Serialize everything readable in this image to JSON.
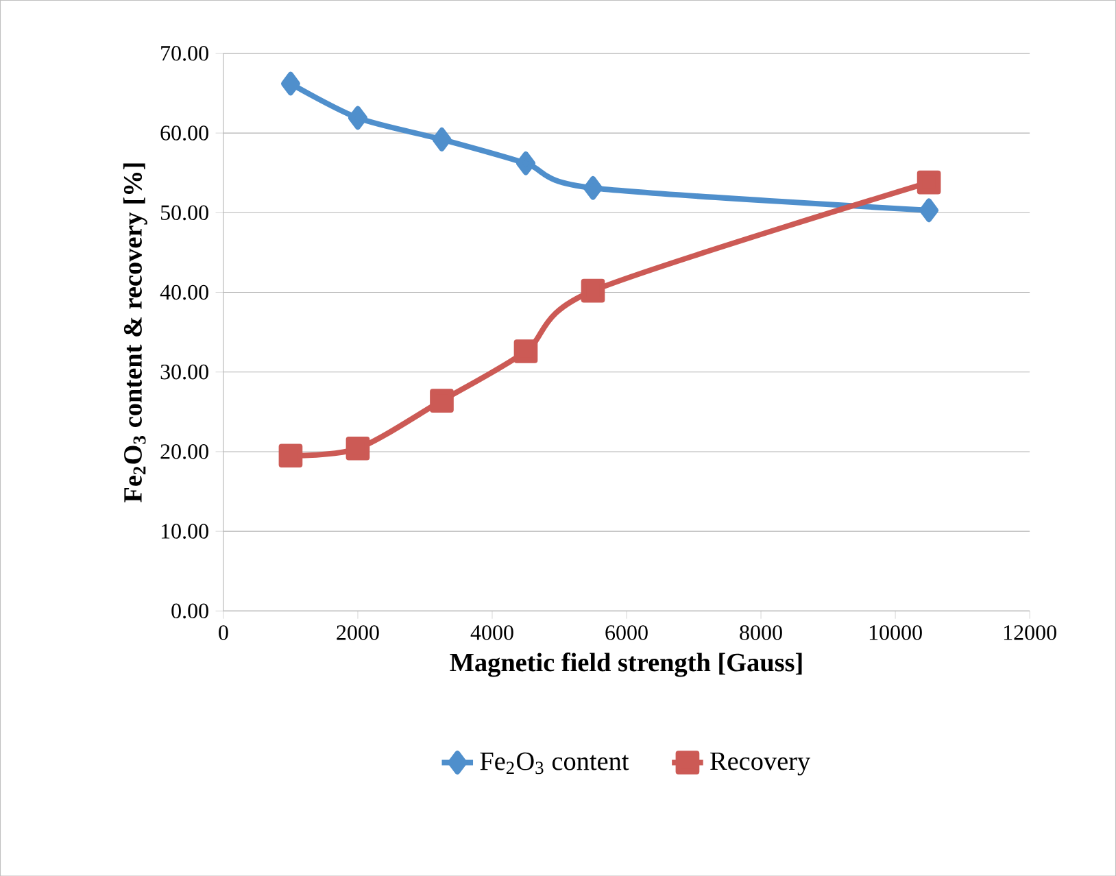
{
  "chart_data": {
    "type": "line",
    "xlabel": "Magnetic field strength [Gauss]",
    "ylabel": "Fe$_{2}$O$_{3}$ content & recovery [%]",
    "xlim": [
      0,
      12000
    ],
    "xticks": [
      0,
      2000,
      4000,
      6000,
      8000,
      10000,
      12000
    ],
    "ylim": [
      0,
      70
    ],
    "yticks": [
      {
        "value": 0,
        "label": "0.00"
      },
      {
        "value": 10,
        "label": "10.00"
      },
      {
        "value": 20,
        "label": "20.00"
      },
      {
        "value": 30,
        "label": "30.00"
      },
      {
        "value": 40,
        "label": "40.00"
      },
      {
        "value": 50,
        "label": "50.00"
      },
      {
        "value": 60,
        "label": "60.00"
      },
      {
        "value": 70,
        "label": "70.00"
      }
    ],
    "grid": "y",
    "legend": "bottom",
    "series": [
      {
        "name": "Fe$_{2}$O$_{3}$ content",
        "color": "#4f8fcc",
        "marker": "diamond",
        "x": [
          1000,
          2000,
          3250,
          4500,
          5500,
          10500
        ],
        "values": [
          66.2,
          61.9,
          59.2,
          56.2,
          53.1,
          50.3
        ]
      },
      {
        "name": "Recovery",
        "color": "#cc5a55",
        "marker": "square",
        "x": [
          1000,
          2000,
          3250,
          4500,
          5500,
          10500
        ],
        "values": [
          19.5,
          20.4,
          26.4,
          32.6,
          40.2,
          53.8
        ]
      }
    ]
  }
}
